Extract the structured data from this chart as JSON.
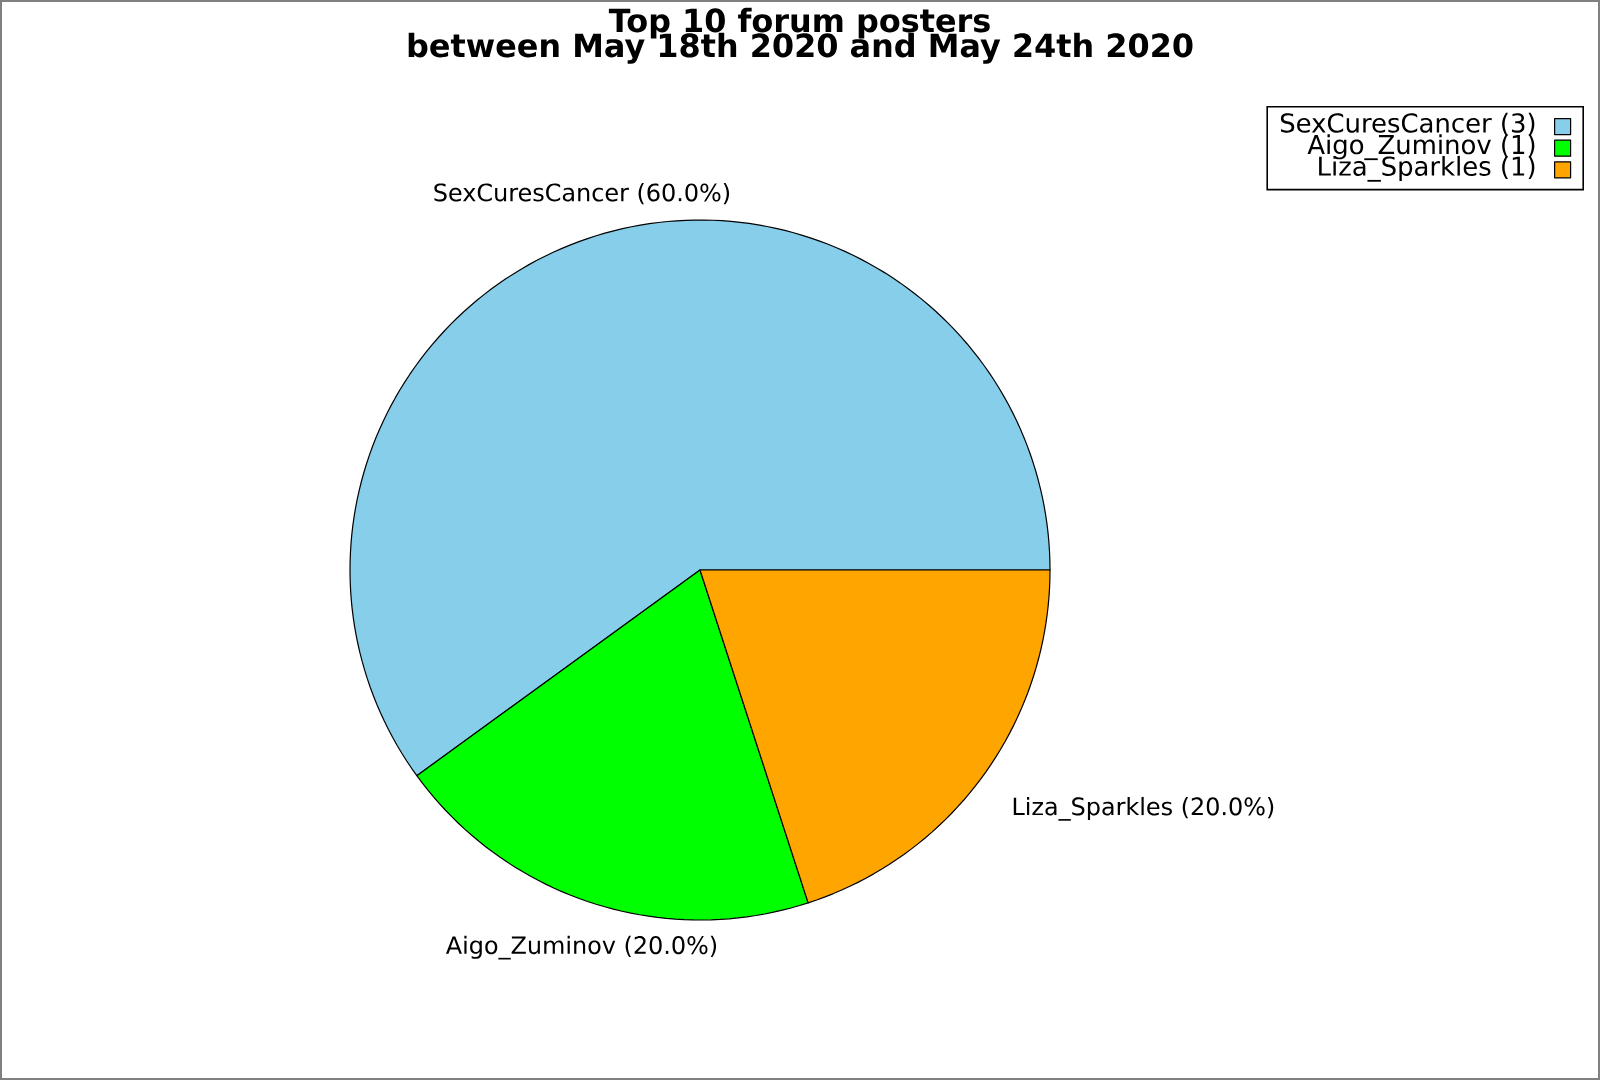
{
  "chart_data": {
    "type": "pie",
    "title": "Top 10 forum posters",
    "subtitle": "between May 18th 2020 and May 24th 2020",
    "categories": [
      "SexCuresCancer (3)",
      "Aigo_Zuminov (1)",
      "Liza_Sparkles (1)"
    ],
    "values": [
      60,
      20,
      20
    ],
    "value_labels": [
      "SexCuresCancer (60.0%)",
      "Aigo_Zuminov (20.0%)",
      "Liza_Sparkles (20.0%)"
    ],
    "colors": [
      "#87ceeb",
      "#00ff00",
      "#ffa500"
    ],
    "legend": "top right"
  }
}
